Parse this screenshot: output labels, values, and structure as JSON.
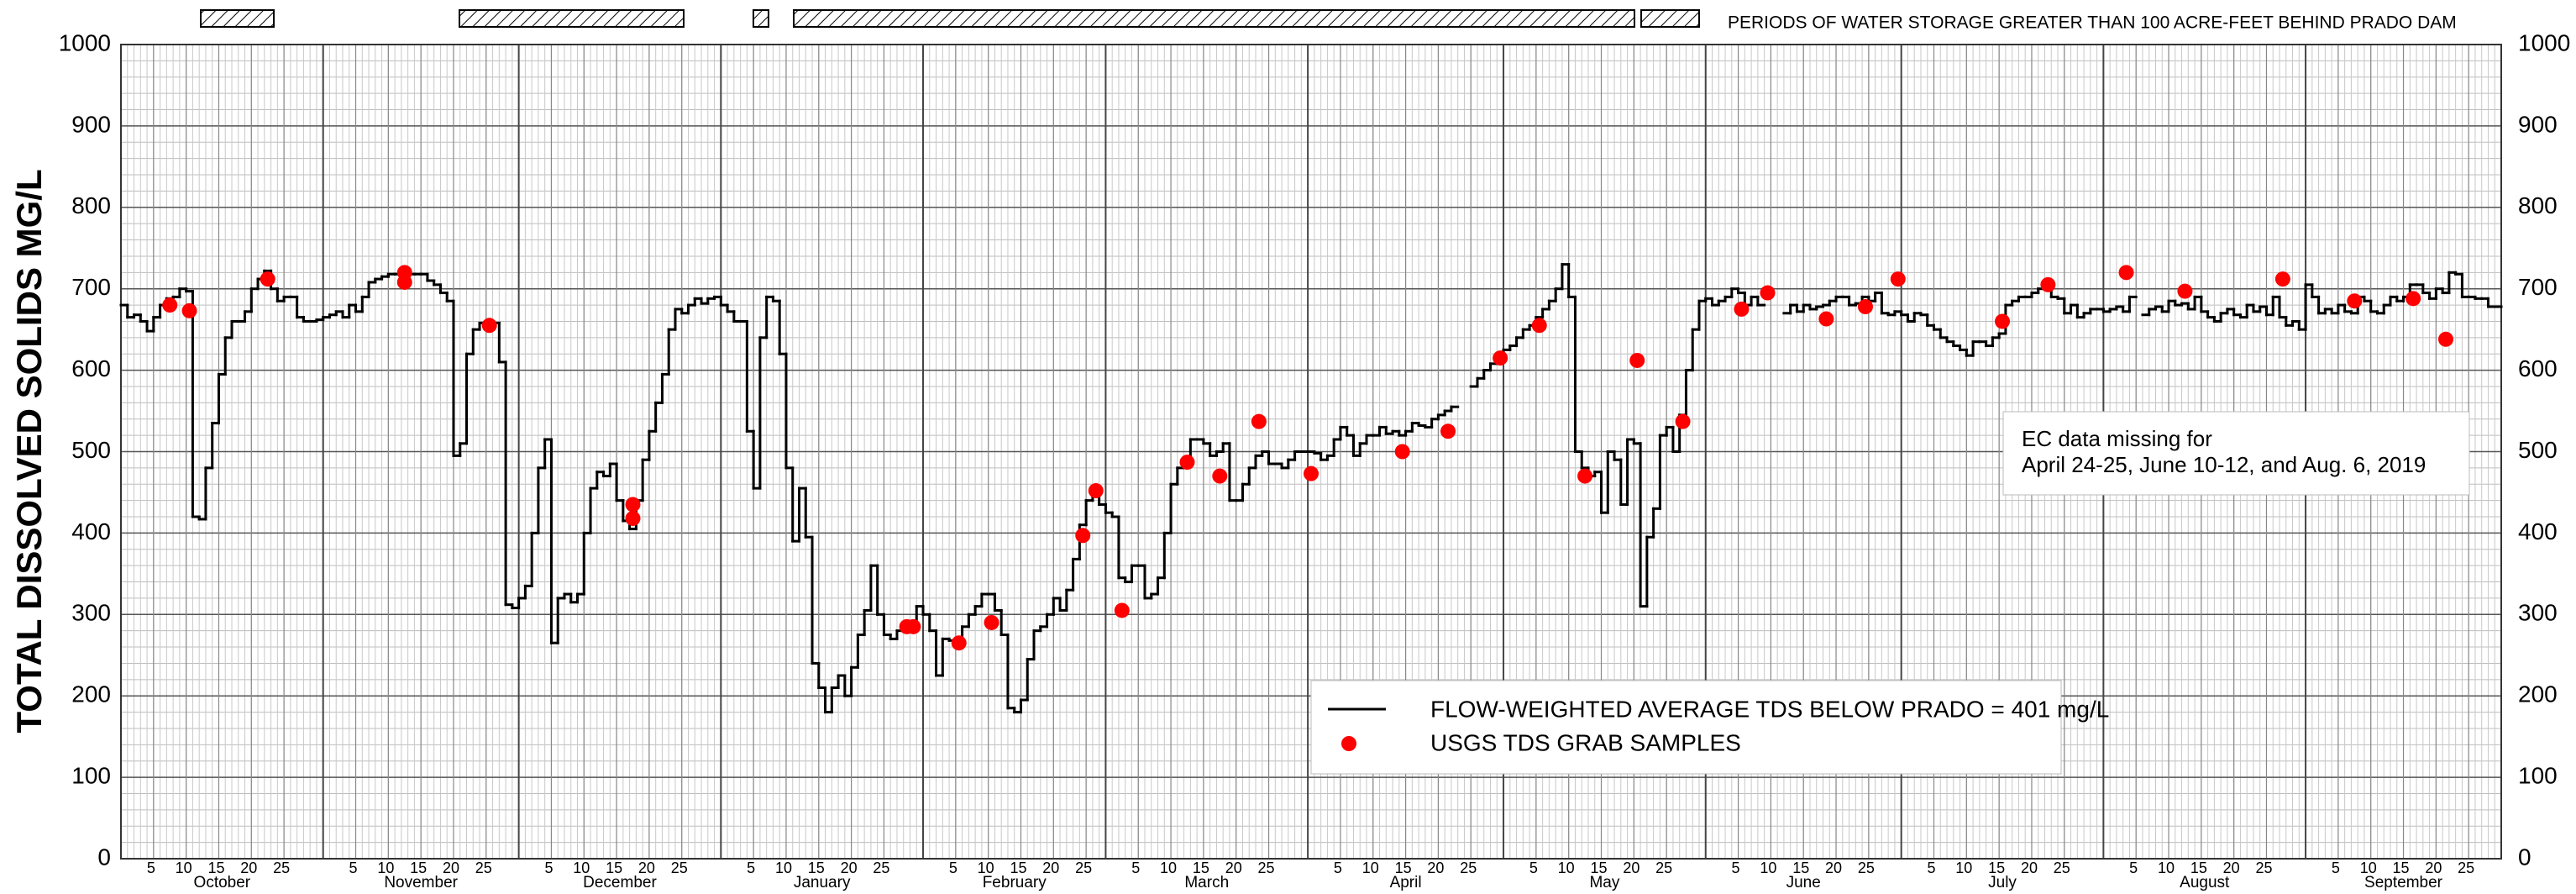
{
  "chart_data": {
    "type": "line",
    "y_label": "TOTAL DISSOLVED SOLIDS MG/L",
    "storage_caption": "PERIODS OF WATER STORAGE GREATER THAN 100 ACRE-FEET BEHIND PRADO DAM",
    "note": [
      "EC data missing for",
      "April 24-25, June 10-12, and Aug. 6, 2019"
    ],
    "ylim": [
      0,
      1000
    ],
    "yticks": [
      0,
      100,
      200,
      300,
      400,
      500,
      600,
      700,
      800,
      900,
      1000
    ],
    "day_ticks": [
      5,
      10,
      15,
      20,
      25
    ],
    "grid": true,
    "series": [
      {
        "name": "FLOW-WEIGHTED AVERAGE TDS BELOW PRADO = 401 mg/L",
        "color": "#000000"
      },
      {
        "name": "USGS TDS GRAB SAMPLES",
        "color": "#ff0000"
      }
    ],
    "months": [
      {
        "name": "October",
        "values": [
          680,
          665,
          668,
          660,
          648,
          665,
          680,
          688,
          690,
          700,
          697,
          420,
          417,
          480,
          535,
          595,
          640,
          660,
          660,
          672,
          700,
          712,
          722,
          700,
          685,
          690,
          690,
          665,
          660,
          660,
          662
        ],
        "samples": {
          "days": [
            8,
            11,
            23
          ],
          "values": [
            680,
            673,
            712
          ]
        }
      },
      {
        "name": "November",
        "values": [
          665,
          668,
          672,
          665,
          680,
          672,
          690,
          708,
          712,
          715,
          718,
          718,
          718,
          718,
          718,
          718,
          710,
          705,
          695,
          685,
          495,
          510,
          620,
          650,
          658,
          650,
          658,
          610,
          312,
          308
        ],
        "samples": {
          "days": [
            13,
            13,
            26
          ],
          "values": [
            720,
            708,
            655
          ]
        }
      },
      {
        "name": "December",
        "values": [
          320,
          335,
          400,
          480,
          515,
          265,
          320,
          325,
          315,
          325,
          400,
          455,
          475,
          470,
          485,
          440,
          415,
          405,
          440,
          490,
          525,
          560,
          595,
          650,
          675,
          670,
          680,
          688,
          682,
          688,
          690
        ],
        "samples": {
          "days": [
            18,
            18
          ],
          "values": [
            435,
            418
          ]
        }
      },
      {
        "name": "January",
        "values": [
          680,
          672,
          660,
          660,
          525,
          455,
          640,
          690,
          685,
          620,
          480,
          390,
          455,
          395,
          240,
          210,
          180,
          210,
          225,
          200,
          235,
          275,
          305,
          360,
          300,
          275,
          270,
          280,
          285,
          285,
          310
        ],
        "samples": {
          "days": [
            29,
            30
          ],
          "values": [
            285,
            285
          ]
        }
      },
      {
        "name": "February",
        "values": [
          300,
          280,
          225,
          270,
          268,
          265,
          285,
          300,
          310,
          325,
          325,
          305,
          275,
          185,
          180,
          195,
          245,
          280,
          285,
          300,
          320,
          305,
          330,
          368,
          410,
          440,
          450,
          435
        ],
        "samples": {
          "days": [
            6,
            11,
            25,
            27
          ],
          "values": [
            265,
            290,
            397,
            452
          ]
        }
      },
      {
        "name": "March",
        "values": [
          425,
          420,
          345,
          340,
          360,
          360,
          320,
          325,
          345,
          400,
          460,
          480,
          490,
          515,
          515,
          510,
          495,
          500,
          510,
          440,
          440,
          460,
          480,
          495,
          500,
          485,
          485,
          480,
          490,
          500,
          500
        ],
        "samples": {
          "days": [
            3,
            13,
            18,
            24
          ],
          "values": [
            305,
            487,
            470,
            537
          ]
        }
      },
      {
        "name": "April",
        "values": [
          500,
          498,
          490,
          495,
          515,
          530,
          520,
          495,
          510,
          520,
          520,
          530,
          522,
          525,
          520,
          525,
          535,
          532,
          530,
          540,
          545,
          550,
          555,
          null,
          null,
          580,
          590,
          600,
          608,
          618
        ],
        "samples": {
          "days": [
            1,
            15,
            22,
            30
          ],
          "values": [
            473,
            500,
            525,
            615
          ]
        }
      },
      {
        "name": "May",
        "values": [
          625,
          630,
          640,
          650,
          655,
          665,
          675,
          685,
          700,
          730,
          690,
          500,
          480,
          470,
          475,
          425,
          500,
          490,
          435,
          515,
          510,
          310,
          395,
          430,
          520,
          530,
          500,
          545,
          600,
          650,
          685
        ],
        "samples": {
          "days": [
            6,
            13,
            21,
            28
          ],
          "values": [
            655,
            470,
            612,
            537
          ]
        }
      },
      {
        "name": "June",
        "values": [
          688,
          680,
          685,
          690,
          700,
          695,
          680,
          690,
          680,
          null,
          null,
          null,
          670,
          680,
          672,
          680,
          675,
          678,
          680,
          685,
          690,
          690,
          680,
          682,
          690,
          685,
          695,
          670,
          668,
          672
        ],
        "samples": {
          "days": [
            6,
            10,
            19,
            25,
            30
          ],
          "values": [
            675,
            695,
            663,
            678,
            712
          ]
        }
      },
      {
        "name": "July",
        "values": [
          668,
          660,
          670,
          668,
          655,
          650,
          640,
          635,
          630,
          625,
          618,
          635,
          635,
          630,
          640,
          645,
          680,
          685,
          690,
          690,
          695,
          700,
          700,
          690,
          688,
          670,
          680,
          665,
          670,
          675,
          675
        ],
        "samples": {
          "days": [
            16,
            23
          ],
          "values": [
            660,
            705
          ]
        }
      },
      {
        "name": "August",
        "values": [
          672,
          675,
          678,
          672,
          690,
          null,
          668,
          675,
          678,
          672,
          685,
          680,
          682,
          675,
          690,
          672,
          665,
          660,
          670,
          675,
          668,
          665,
          680,
          672,
          678,
          668,
          690,
          665,
          655,
          660,
          650
        ],
        "samples": {
          "days": [
            4,
            13,
            28
          ],
          "values": [
            720,
            697,
            712
          ]
        }
      },
      {
        "name": "September",
        "values": [
          705,
          690,
          670,
          675,
          670,
          680,
          672,
          670,
          690,
          685,
          672,
          670,
          680,
          690,
          685,
          690,
          705,
          705,
          695,
          688,
          700,
          695,
          720,
          718,
          690,
          690,
          688,
          688,
          678,
          678
        ],
        "samples": {
          "days": [
            8,
            17,
            22
          ],
          "values": [
            685,
            688,
            638
          ]
        }
      }
    ]
  }
}
